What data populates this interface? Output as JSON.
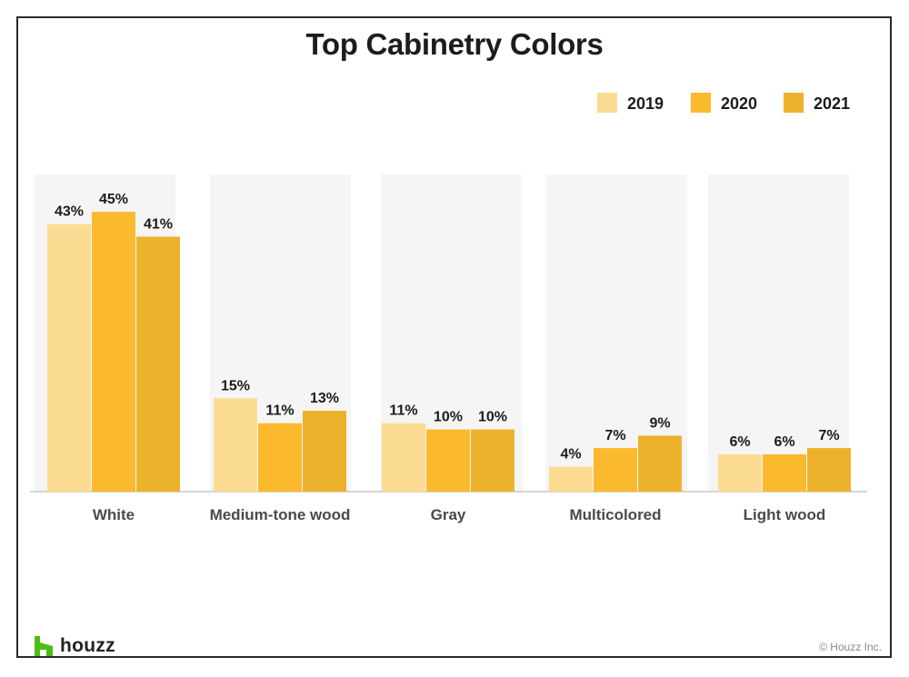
{
  "chart_data": {
    "type": "bar",
    "title": "Top Cabinetry Colors",
    "categories": [
      "White",
      "Medium-tone wood",
      "Gray",
      "Multicolored",
      "Light wood"
    ],
    "series": [
      {
        "name": "2019",
        "values": [
          43,
          15,
          11,
          4,
          6
        ],
        "labels": [
          "43%",
          "15%",
          "11%",
          "4%",
          "6%"
        ],
        "color": "#FCDC92"
      },
      {
        "name": "2020",
        "values": [
          45,
          11,
          10,
          7,
          6
        ],
        "labels": [
          "45%",
          "11%",
          "10%",
          "7%",
          "6%"
        ],
        "color": "#FBB92E"
      },
      {
        "name": "2021",
        "values": [
          41,
          13,
          10,
          9,
          7
        ],
        "labels": [
          "41%",
          "13%",
          "10%",
          "9%",
          "7%"
        ],
        "color": "#EDB22C"
      }
    ],
    "ylim": [
      0,
      51
    ],
    "legend": "top-right",
    "grid": false
  },
  "branding": {
    "logo_text": "houzz",
    "logo_icon": "houzz-h-icon",
    "logo_color": "#4DBC15",
    "copyright": "© Houzz Inc."
  }
}
